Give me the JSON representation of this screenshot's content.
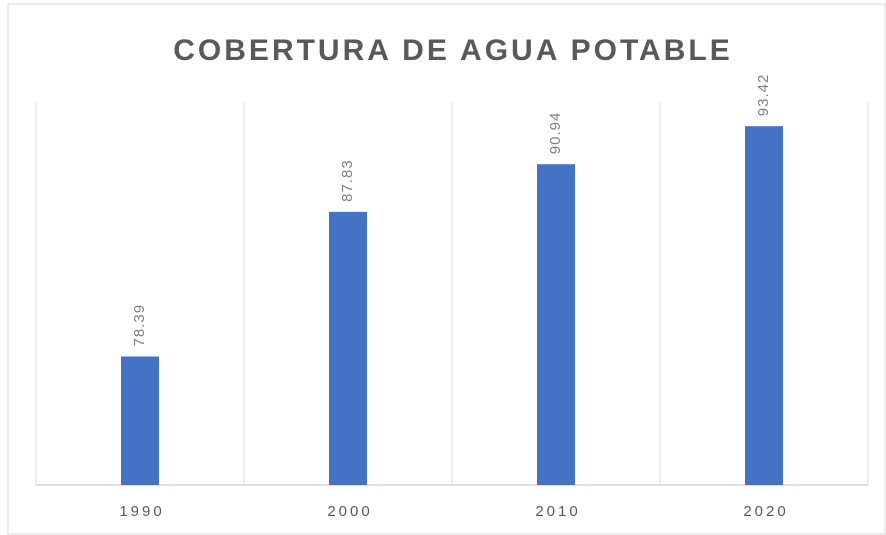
{
  "chart_data": {
    "type": "bar",
    "title": "COBERTURA DE AGUA POTABLE",
    "categories": [
      "1990",
      "2000",
      "2010",
      "2020"
    ],
    "values": [
      78.39,
      87.83,
      90.94,
      93.42
    ],
    "color": "#4472c4",
    "ylim": [
      70,
      95
    ],
    "grid": true
  }
}
